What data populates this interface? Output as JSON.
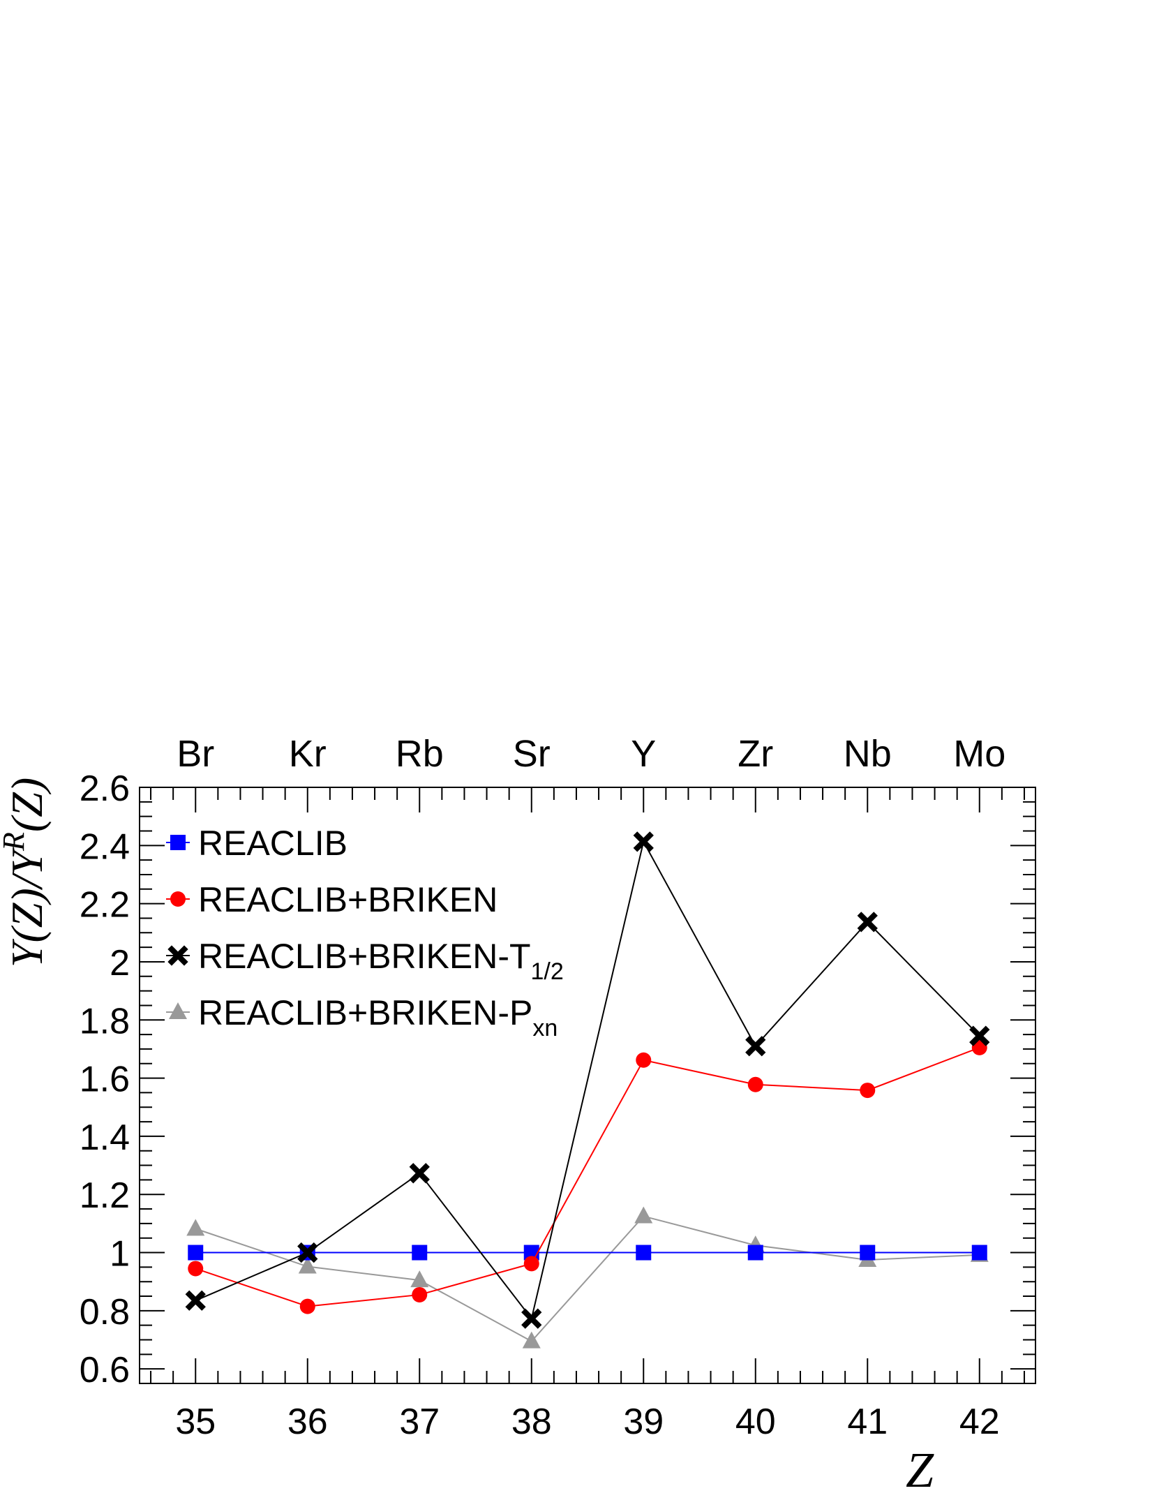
{
  "chart_data": {
    "type": "line",
    "x": [
      35,
      36,
      37,
      38,
      39,
      40,
      41,
      42
    ],
    "top_labels": [
      "Br",
      "Kr",
      "Rb",
      "Sr",
      "Y",
      "Zr",
      "Nb",
      "Mo"
    ],
    "xlim": [
      34.5,
      42.5
    ],
    "ylim": [
      0.55,
      2.6
    ],
    "yticks": [
      "0.6",
      "0.8",
      "1",
      "1.2",
      "1.4",
      "1.6",
      "1.8",
      "2",
      "2.2",
      "2.4",
      "2.6"
    ],
    "ytick_values": [
      0.6,
      0.8,
      1.0,
      1.2,
      1.4,
      1.6,
      1.8,
      2.0,
      2.2,
      2.4,
      2.6
    ],
    "xticks": [
      "35",
      "36",
      "37",
      "38",
      "39",
      "40",
      "41",
      "42"
    ],
    "xlabel": "Z",
    "ylabel": "Y(Z)/Y^R(Z)",
    "ylabel_parts": {
      "a": "Y(Z)/Y",
      "sup": "R",
      "b": "(Z)"
    },
    "legend_position": "top-left",
    "series": [
      {
        "name": "REACLIB",
        "name_main": "REACLIB",
        "name_sub": "",
        "color": "#0000ff",
        "marker": "square",
        "values": [
          1.0,
          1.0,
          1.0,
          1.0,
          1.0,
          1.0,
          1.0,
          1.0
        ]
      },
      {
        "name": "REACLIB+BRIKEN",
        "name_main": "REACLIB+BRIKEN",
        "name_sub": "",
        "color": "#ff0000",
        "marker": "circle",
        "values": [
          0.945,
          0.815,
          0.855,
          0.962,
          1.662,
          1.578,
          1.558,
          1.705
        ]
      },
      {
        "name": "REACLIB+BRIKEN-T1/2",
        "name_main": "REACLIB+BRIKEN-T",
        "name_sub": "1/2",
        "color": "#000000",
        "marker": "x",
        "values": [
          0.835,
          1.0,
          1.273,
          0.773,
          2.413,
          1.71,
          2.137,
          1.745
        ]
      },
      {
        "name": "REACLIB+BRIKEN-Pxn",
        "name_main": "REACLIB+BRIKEN-P",
        "name_sub": "xn",
        "color": "#999999",
        "marker": "triangle",
        "values": [
          1.082,
          0.952,
          0.905,
          0.695,
          1.125,
          1.025,
          0.975,
          0.992
        ]
      }
    ]
  }
}
